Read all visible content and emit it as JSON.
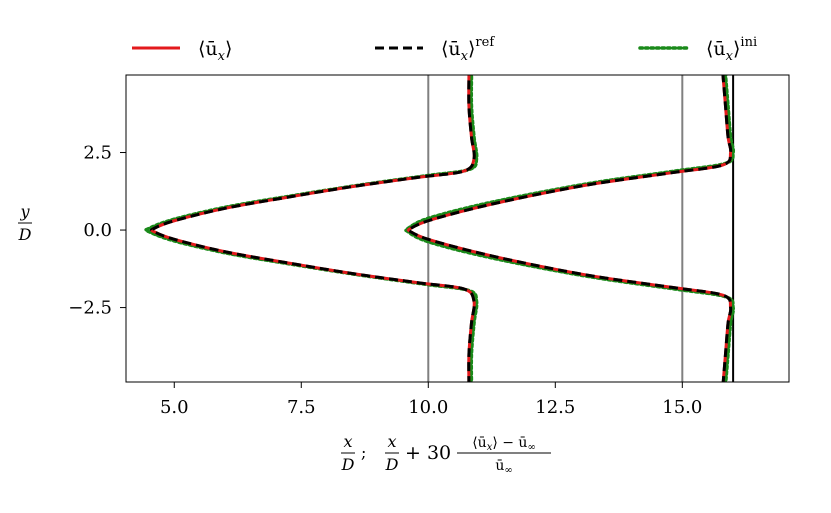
{
  "chart_data": {
    "type": "line",
    "xlabel": "x/D;  x/D + 30 (⟨ū_x⟩ − ū_∞)/ū_∞",
    "ylabel": "y/D",
    "xlim": [
      4.05,
      17.1
    ],
    "ylim": [
      -4.9,
      5.0
    ],
    "xticks": [
      5.0,
      7.5,
      10.0,
      12.5,
      15.0
    ],
    "xtick_labels": [
      "5.0",
      "7.5",
      "10.0",
      "12.5",
      "15.0"
    ],
    "yticks": [
      -2.5,
      0.0,
      2.5
    ],
    "ytick_labels": [
      "−2.5",
      "0.0",
      "2.5"
    ],
    "grid": false,
    "legend_placement": "top (above plot, horizontal)",
    "reference_lines": [
      {
        "x": 10.0,
        "color": "#808080"
      },
      {
        "x": 15.0,
        "color": "#808080"
      },
      {
        "x": 16.0,
        "color": "#000000"
      }
    ],
    "series": [
      {
        "name": "⟨ū_x⟩",
        "name_base": "⟨ū",
        "name_sub": "x",
        "name_sup": "",
        "color": "#e31a1c",
        "dash": "solid",
        "profiles": [
          {
            "x": [
              10.8,
              10.8,
              10.85,
              10.9,
              10.7,
              9.8,
              8.5,
              7.2,
              6.0,
              5.0,
              4.6,
              4.6,
              5.0,
              6.0,
              7.2,
              8.5,
              9.8,
              10.7,
              10.9,
              10.85,
              10.8,
              10.8
            ],
            "y": [
              -5.0,
              -4.0,
              -3.0,
              -2.3,
              -1.9,
              -1.7,
              -1.4,
              -1.05,
              -0.7,
              -0.3,
              -0.05,
              0.05,
              0.3,
              0.7,
              1.05,
              1.4,
              1.7,
              1.9,
              2.3,
              3.0,
              4.0,
              5.0
            ]
          },
          {
            "x": [
              15.8,
              15.85,
              15.9,
              15.95,
              15.8,
              14.8,
              13.3,
              12.0,
              10.9,
              10.0,
              9.65,
              9.65,
              10.0,
              10.9,
              12.0,
              13.3,
              14.8,
              15.8,
              15.95,
              15.9,
              15.85,
              15.8
            ],
            "y": [
              -5.0,
              -4.0,
              -3.0,
              -2.5,
              -2.1,
              -1.85,
              -1.5,
              -1.1,
              -0.7,
              -0.3,
              -0.05,
              0.05,
              0.3,
              0.7,
              1.1,
              1.5,
              1.85,
              2.1,
              2.5,
              3.0,
              4.0,
              5.0
            ]
          }
        ]
      },
      {
        "name": "⟨ū_x⟩^ref",
        "name_base": "⟨ū",
        "name_sub": "x",
        "name_sup": "ref",
        "color": "#000000",
        "dash": "dashed",
        "profiles": [
          {
            "x": [
              10.8,
              10.8,
              10.85,
              10.9,
              10.7,
              9.8,
              8.5,
              7.2,
              6.0,
              5.0,
              4.6,
              4.6,
              5.0,
              6.0,
              7.2,
              8.5,
              9.8,
              10.7,
              10.9,
              10.85,
              10.8,
              10.8
            ],
            "y": [
              -5.0,
              -4.0,
              -3.0,
              -2.3,
              -1.9,
              -1.7,
              -1.4,
              -1.05,
              -0.7,
              -0.3,
              -0.05,
              0.05,
              0.3,
              0.7,
              1.05,
              1.4,
              1.7,
              1.9,
              2.3,
              3.0,
              4.0,
              5.0
            ]
          },
          {
            "x": [
              15.8,
              15.85,
              15.9,
              15.95,
              15.8,
              14.8,
              13.3,
              12.0,
              10.9,
              10.0,
              9.65,
              9.65,
              10.0,
              10.9,
              12.0,
              13.3,
              14.8,
              15.8,
              15.95,
              15.9,
              15.85,
              15.8
            ],
            "y": [
              -5.0,
              -4.0,
              -3.0,
              -2.5,
              -2.1,
              -1.85,
              -1.5,
              -1.1,
              -0.7,
              -0.3,
              -0.05,
              0.05,
              0.3,
              0.7,
              1.1,
              1.5,
              1.85,
              2.1,
              2.5,
              3.0,
              4.0,
              5.0
            ]
          }
        ]
      },
      {
        "name": "⟨ū_x⟩^ini",
        "name_base": "⟨ū",
        "name_sub": "x",
        "name_sup": "ini",
        "color": "#1a8a1a",
        "dash": "dotted",
        "profiles": [
          {
            "x": [
              10.85,
              10.85,
              10.9,
              10.95,
              10.8,
              9.95,
              8.65,
              7.3,
              6.05,
              5.0,
              4.5,
              4.5,
              5.0,
              6.05,
              7.3,
              8.65,
              9.95,
              10.8,
              10.95,
              10.9,
              10.85,
              10.85
            ],
            "y": [
              -5.0,
              -4.0,
              -3.0,
              -2.3,
              -1.95,
              -1.75,
              -1.45,
              -1.1,
              -0.75,
              -0.35,
              -0.05,
              0.05,
              0.35,
              0.75,
              1.1,
              1.45,
              1.75,
              1.95,
              2.3,
              3.0,
              4.0,
              5.0
            ]
          },
          {
            "x": [
              15.85,
              15.9,
              15.95,
              16.0,
              15.85,
              14.85,
              13.35,
              12.0,
              10.85,
              9.95,
              9.6,
              9.6,
              9.95,
              10.85,
              12.0,
              13.35,
              14.85,
              15.85,
              16.0,
              15.95,
              15.9,
              15.85
            ],
            "y": [
              -5.0,
              -4.0,
              -3.0,
              -2.5,
              -2.15,
              -1.9,
              -1.55,
              -1.15,
              -0.75,
              -0.35,
              -0.05,
              0.05,
              0.35,
              0.75,
              1.15,
              1.55,
              1.9,
              2.15,
              2.5,
              3.0,
              4.0,
              5.0
            ]
          }
        ]
      }
    ]
  }
}
